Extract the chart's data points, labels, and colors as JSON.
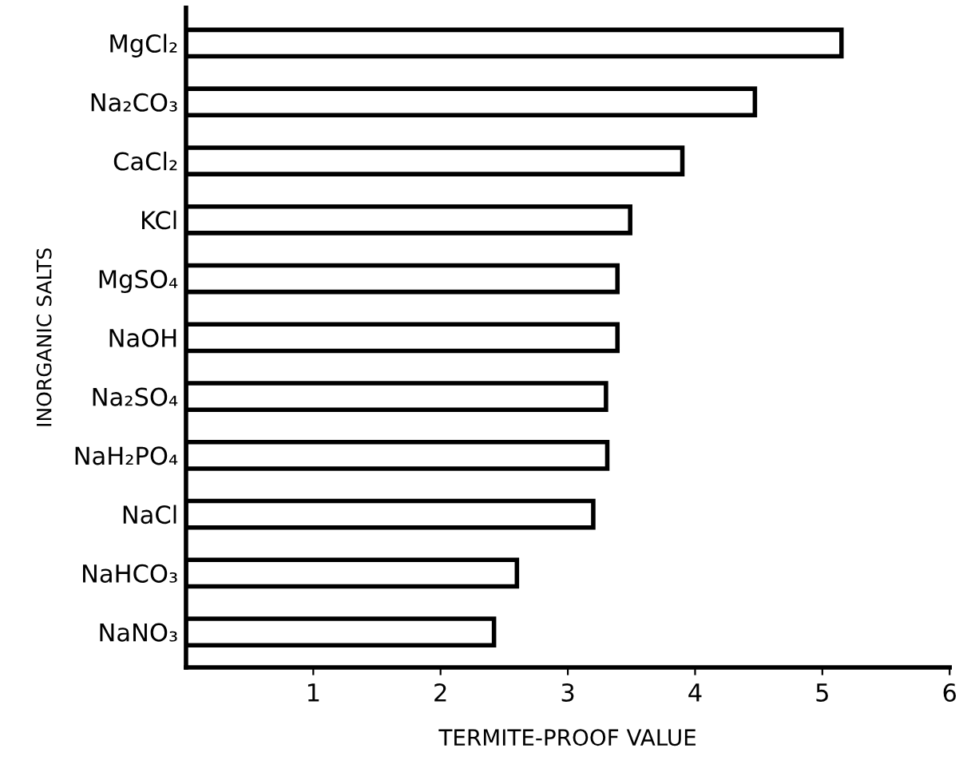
{
  "chart_data": {
    "type": "bar",
    "orientation": "horizontal",
    "xlabel": "TERMITE-PROOF VALUE",
    "ylabel": "INORGANIC SALTS",
    "categories": [
      "MgCl₂",
      "Na₂CO₃",
      "CaCl₂",
      "KCl",
      "MgSO₄",
      "NaOH",
      "Na₂SO₄",
      "NaH₂PO₄",
      "NaCl",
      "NaHCO₃",
      "NaNO₃"
    ],
    "values": [
      5.15,
      4.47,
      3.9,
      3.49,
      3.39,
      3.39,
      3.3,
      3.31,
      3.2,
      2.6,
      2.42
    ],
    "color": "#ffffff",
    "xlim": [
      0,
      6
    ],
    "xticks": [
      1,
      2,
      3,
      4,
      5,
      6
    ],
    "grid": false
  }
}
